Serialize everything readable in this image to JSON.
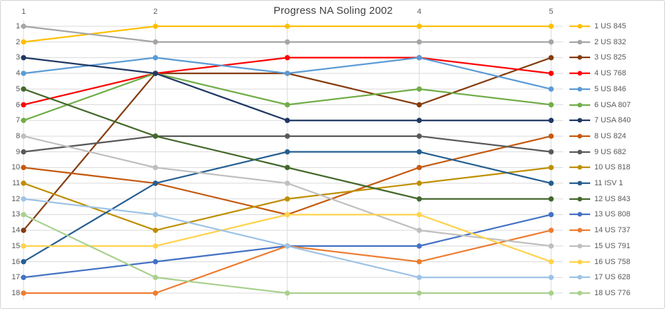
{
  "title": "Progress NA Soling 2002",
  "x_axis": {
    "visible_labels": [
      "1",
      "2",
      "4",
      "5"
    ],
    "visible_label_columns": [
      0,
      1,
      3,
      4
    ]
  },
  "y_axis": {
    "labels": [
      "1",
      "2",
      "3",
      "4",
      "5",
      "6",
      "7",
      "8",
      "9",
      "10",
      "11",
      "12",
      "13",
      "14",
      "15",
      "16",
      "17",
      "18"
    ]
  },
  "chart_data": {
    "type": "line",
    "title": "Progress NA Soling 2002",
    "x": [
      1,
      2,
      3,
      4,
      5
    ],
    "xlabel": "",
    "ylabel": "",
    "ylim": [
      1,
      18
    ],
    "y_inverted": true,
    "grid": true,
    "legend_position": "right",
    "series": [
      {
        "name": "1 US 845",
        "color": "#FFC000",
        "values": [
          2,
          1,
          1,
          1,
          1
        ]
      },
      {
        "name": "2 US 832",
        "color": "#A5A5A5",
        "values": [
          1,
          2,
          2,
          2,
          2
        ]
      },
      {
        "name": "3 US 825",
        "color": "#843C0C",
        "values": [
          14,
          4,
          4,
          6,
          3
        ]
      },
      {
        "name": "4 US 768",
        "color": "#FF0000",
        "values": [
          6,
          4,
          3,
          3,
          4
        ]
      },
      {
        "name": "5 US 846",
        "color": "#5B9BD5",
        "values": [
          4,
          3,
          4,
          3,
          5
        ]
      },
      {
        "name": "6 USA 807",
        "color": "#70AD47",
        "values": [
          7,
          4,
          6,
          5,
          6
        ]
      },
      {
        "name": "7 USA 840",
        "color": "#1F3864",
        "values": [
          3,
          4,
          7,
          7,
          7
        ]
      },
      {
        "name": "8 US 824",
        "color": "#C55A11",
        "values": [
          10,
          11,
          13,
          10,
          8
        ]
      },
      {
        "name": "9 US 682",
        "color": "#595959",
        "values": [
          9,
          8,
          8,
          8,
          9
        ]
      },
      {
        "name": "10 US 818",
        "color": "#BF8F00",
        "values": [
          11,
          14,
          12,
          11,
          10
        ]
      },
      {
        "name": "11 ISV 1",
        "color": "#255E91",
        "values": [
          16,
          11,
          9,
          9,
          11
        ]
      },
      {
        "name": "12 US 843",
        "color": "#43682B",
        "values": [
          5,
          8,
          10,
          12,
          12
        ]
      },
      {
        "name": "13 US 808",
        "color": "#4472C4",
        "values": [
          17,
          16,
          15,
          15,
          13
        ]
      },
      {
        "name": "14 US 737",
        "color": "#ED7D31",
        "values": [
          18,
          18,
          15,
          16,
          14
        ]
      },
      {
        "name": "15 US 791",
        "color": "#BFBFBF",
        "values": [
          8,
          10,
          11,
          14,
          15
        ]
      },
      {
        "name": "16 US 758",
        "color": "#FFD34D",
        "values": [
          15,
          15,
          13,
          13,
          16
        ]
      },
      {
        "name": "17 US 628",
        "color": "#9DC3E6",
        "values": [
          12,
          13,
          15,
          17,
          17
        ]
      },
      {
        "name": "18 US 776",
        "color": "#A9D18E",
        "values": [
          13,
          17,
          18,
          18,
          18
        ]
      }
    ]
  }
}
